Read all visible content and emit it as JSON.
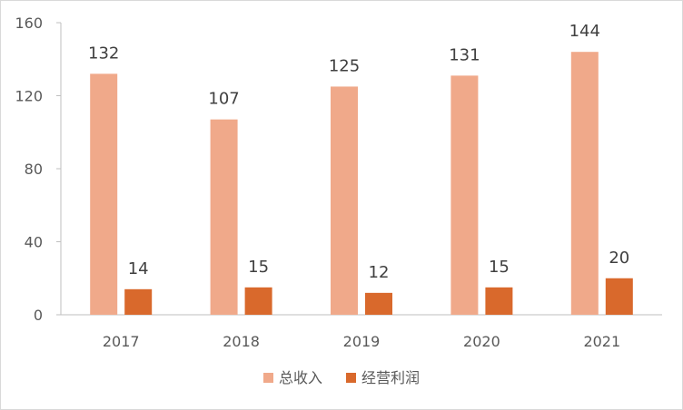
{
  "chart_data": {
    "type": "bar",
    "title": "",
    "xlabel": "",
    "ylabel": "",
    "categories": [
      "2017",
      "2018",
      "2019",
      "2020",
      "2021"
    ],
    "series": [
      {
        "name": "总收入",
        "values": [
          132,
          107,
          125,
          131,
          144
        ],
        "color": "#F0A98A"
      },
      {
        "name": "经营利润",
        "values": [
          14,
          15,
          12,
          15,
          20
        ],
        "color": "#D9692C"
      }
    ],
    "ylim": [
      0,
      160
    ],
    "yticks": [
      "0",
      "40",
      "80",
      "120",
      "160"
    ],
    "grid": false,
    "legend": "bottom"
  }
}
